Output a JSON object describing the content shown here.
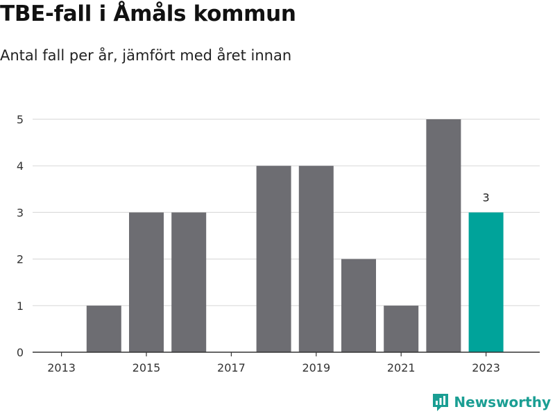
{
  "header": {
    "title": "TBE-fall i Åmåls kommun",
    "subtitle": "Antal fall per år, jämfört med året innan"
  },
  "brand": {
    "name": "Newsworthy",
    "icon": "newsworthy-logo-icon",
    "color": "#1a9e93"
  },
  "colors": {
    "bar": "#6d6d72",
    "highlight": "#00a39a",
    "grid": "#dcdcdc",
    "axis": "#333333"
  },
  "chart_data": {
    "type": "bar",
    "categories": [
      "2013",
      "2014",
      "2015",
      "2016",
      "2017",
      "2018",
      "2019",
      "2020",
      "2021",
      "2022",
      "2023"
    ],
    "values": [
      0,
      1,
      3,
      3,
      0,
      4,
      4,
      2,
      1,
      5,
      3
    ],
    "highlight_index": 10,
    "highlight_label": "3",
    "x_tick_labels": [
      "2013",
      "2015",
      "2017",
      "2019",
      "2021",
      "2023"
    ],
    "y_ticks": [
      0,
      1,
      2,
      3,
      4,
      5
    ],
    "ylim": [
      0,
      5
    ],
    "grid": true,
    "xlabel": "",
    "ylabel": ""
  }
}
